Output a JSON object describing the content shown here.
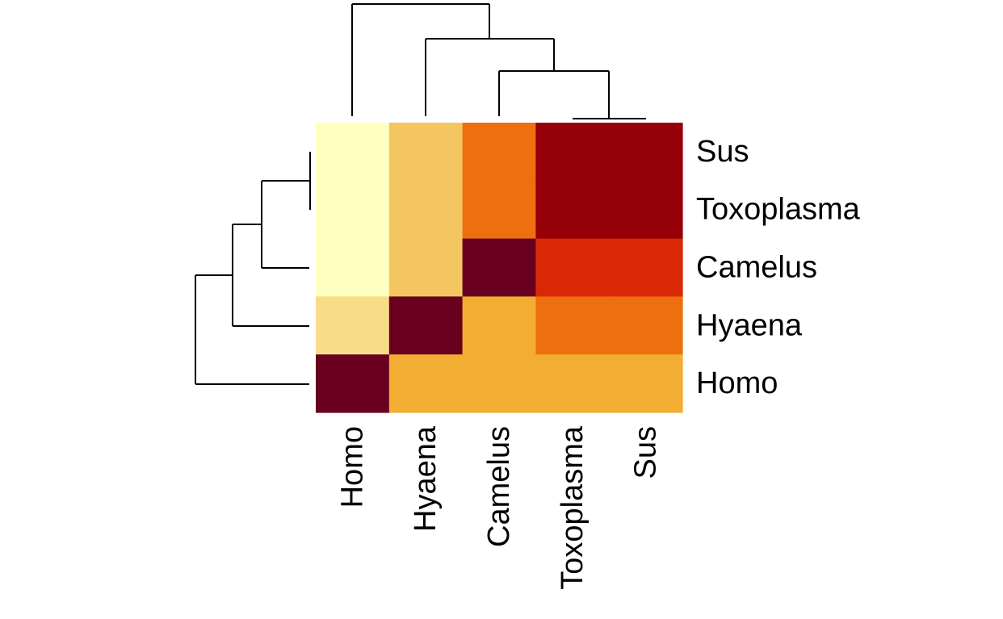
{
  "chart_data": {
    "type": "heatmap",
    "title": "",
    "xlabel": "",
    "ylabel": "",
    "columns": [
      "Homo",
      "Hyaena",
      "Camelus",
      "Toxoplasma",
      "Sus"
    ],
    "rows": [
      "Sus",
      "Toxoplasma",
      "Camelus",
      "Hyaena",
      "Homo"
    ],
    "values": [
      [
        1,
        2,
        3,
        5,
        5
      ],
      [
        1,
        2,
        3,
        5,
        5
      ],
      [
        1,
        2,
        6,
        4,
        4
      ],
      [
        1.5,
        6,
        2.5,
        3,
        3
      ],
      [
        6,
        2.5,
        2.5,
        2.5,
        2.5
      ]
    ],
    "palette": [
      "#FFFFC0",
      "#F8DD88",
      "#F4C662",
      "#F2AD32",
      "#ED6F0F",
      "#D92806",
      "#960008",
      "#6A0020"
    ],
    "color_scale": [
      1,
      1.5,
      2,
      2.5,
      3,
      4,
      5,
      6
    ],
    "value_range": [
      1,
      6
    ],
    "col_dendrogram": true,
    "row_dendrogram": true,
    "legend": "none"
  }
}
